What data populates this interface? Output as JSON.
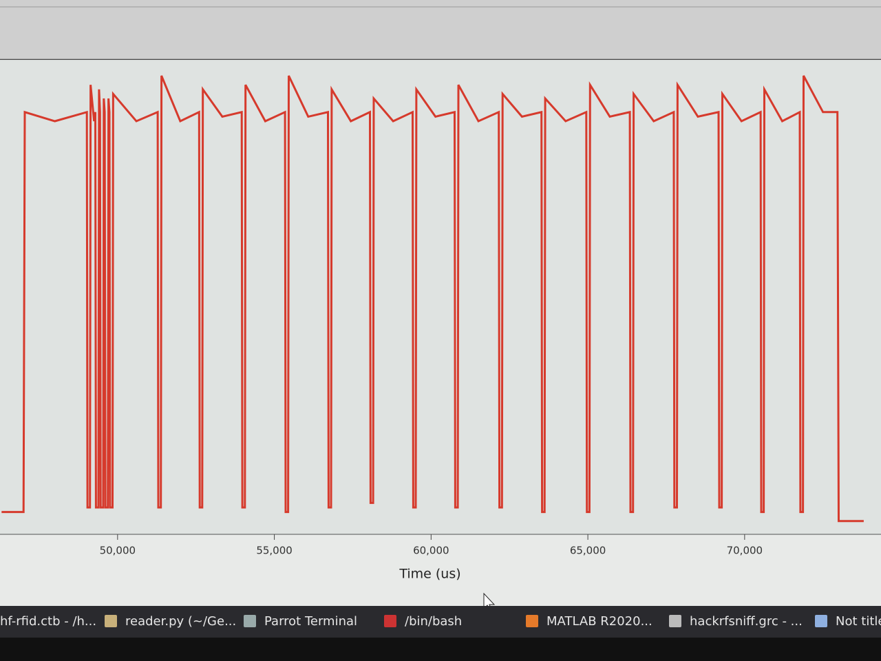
{
  "chart_data": {
    "type": "line",
    "x_label": "Time (us)",
    "color": "#d63a2c",
    "xlim": [
      46250,
      74350
    ],
    "ylim": [
      0,
      1
    ],
    "xticks": [
      {
        "value": 50000,
        "label": "50,000"
      },
      {
        "value": 55000,
        "label": "55,000"
      },
      {
        "value": 60000,
        "label": "60,000"
      },
      {
        "value": 65000,
        "label": "65,000"
      },
      {
        "value": 70000,
        "label": "70,000"
      }
    ],
    "x": [
      46300,
      47000,
      47040,
      48000,
      49020,
      49040,
      49120,
      49140,
      49250,
      49290,
      49310,
      49390,
      49410,
      49440,
      49460,
      49540,
      49560,
      49590,
      49610,
      49690,
      49710,
      49740,
      49760,
      49840,
      49860,
      50600,
      51280,
      51300,
      51380,
      51400,
      52000,
      52600,
      52620,
      52700,
      52720,
      53340,
      53960,
      53980,
      54060,
      54080,
      54710,
      55340,
      55360,
      55440,
      55460,
      56080,
      56710,
      56730,
      56810,
      56830,
      57440,
      58050,
      58070,
      58150,
      58170,
      58790,
      59410,
      59430,
      59510,
      59530,
      60140,
      60750,
      60770,
      60850,
      60870,
      61510,
      62160,
      62180,
      62260,
      62280,
      62900,
      63520,
      63540,
      63620,
      63640,
      64290,
      64950,
      64970,
      65050,
      65070,
      65700,
      66340,
      66360,
      66440,
      66460,
      67100,
      67740,
      67760,
      67840,
      67860,
      68510,
      69170,
      69190,
      69270,
      69290,
      69900,
      70510,
      70530,
      70610,
      70630,
      71200,
      71760,
      71780,
      71860,
      71880,
      72500,
      72960,
      73000,
      73800
    ],
    "values": [
      0.04,
      0.04,
      0.92,
      0.9,
      0.92,
      0.05,
      0.05,
      0.98,
      0.9,
      0.92,
      0.05,
      0.05,
      0.97,
      0.92,
      0.05,
      0.05,
      0.95,
      0.92,
      0.05,
      0.05,
      0.95,
      0.92,
      0.05,
      0.05,
      0.96,
      0.9,
      0.92,
      0.05,
      0.05,
      1.0,
      0.9,
      0.92,
      0.05,
      0.05,
      0.97,
      0.91,
      0.92,
      0.05,
      0.05,
      0.98,
      0.9,
      0.92,
      0.04,
      0.04,
      1.0,
      0.91,
      0.92,
      0.05,
      0.05,
      0.97,
      0.9,
      0.92,
      0.06,
      0.06,
      0.95,
      0.9,
      0.92,
      0.05,
      0.05,
      0.97,
      0.91,
      0.92,
      0.05,
      0.05,
      0.98,
      0.9,
      0.92,
      0.05,
      0.05,
      0.96,
      0.91,
      0.92,
      0.04,
      0.04,
      0.95,
      0.9,
      0.92,
      0.04,
      0.04,
      0.98,
      0.91,
      0.92,
      0.04,
      0.04,
      0.96,
      0.9,
      0.92,
      0.05,
      0.05,
      0.98,
      0.91,
      0.92,
      0.05,
      0.05,
      0.96,
      0.9,
      0.92,
      0.04,
      0.04,
      0.97,
      0.9,
      0.92,
      0.04,
      0.04,
      1.0,
      0.92,
      0.92,
      0.02,
      0.02
    ]
  },
  "taskbar": {
    "items": [
      "hf-rfid.ctb - /h...",
      "reader.py (~/Ge...",
      "Parrot Terminal",
      "/bin/bash",
      "MATLAB R2020...",
      "hackrfsniff.grc - ...",
      "Not title"
    ]
  }
}
